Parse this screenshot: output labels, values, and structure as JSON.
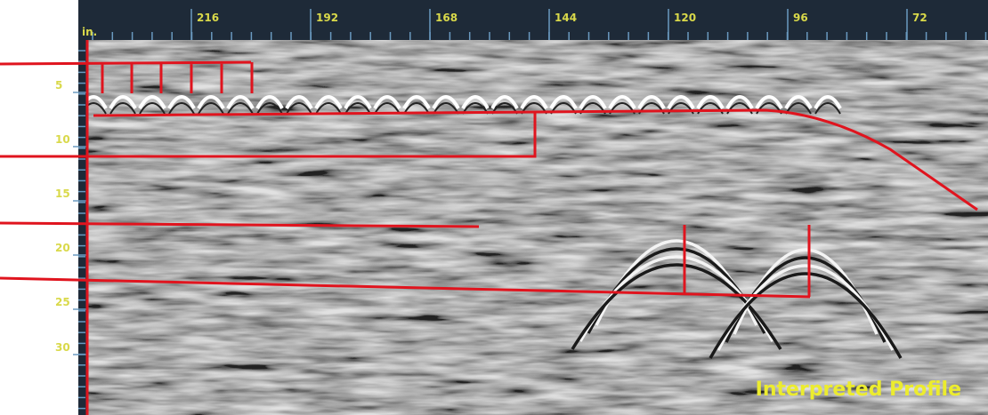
{
  "top_axis": {
    "unit": "in.",
    "labels": [
      "216",
      "192",
      "168",
      "144",
      "120",
      "96",
      "72"
    ]
  },
  "left_axis": {
    "labels": [
      "5",
      "10",
      "15",
      "20",
      "25",
      "30"
    ]
  },
  "caption": "Interpreted Profile"
}
